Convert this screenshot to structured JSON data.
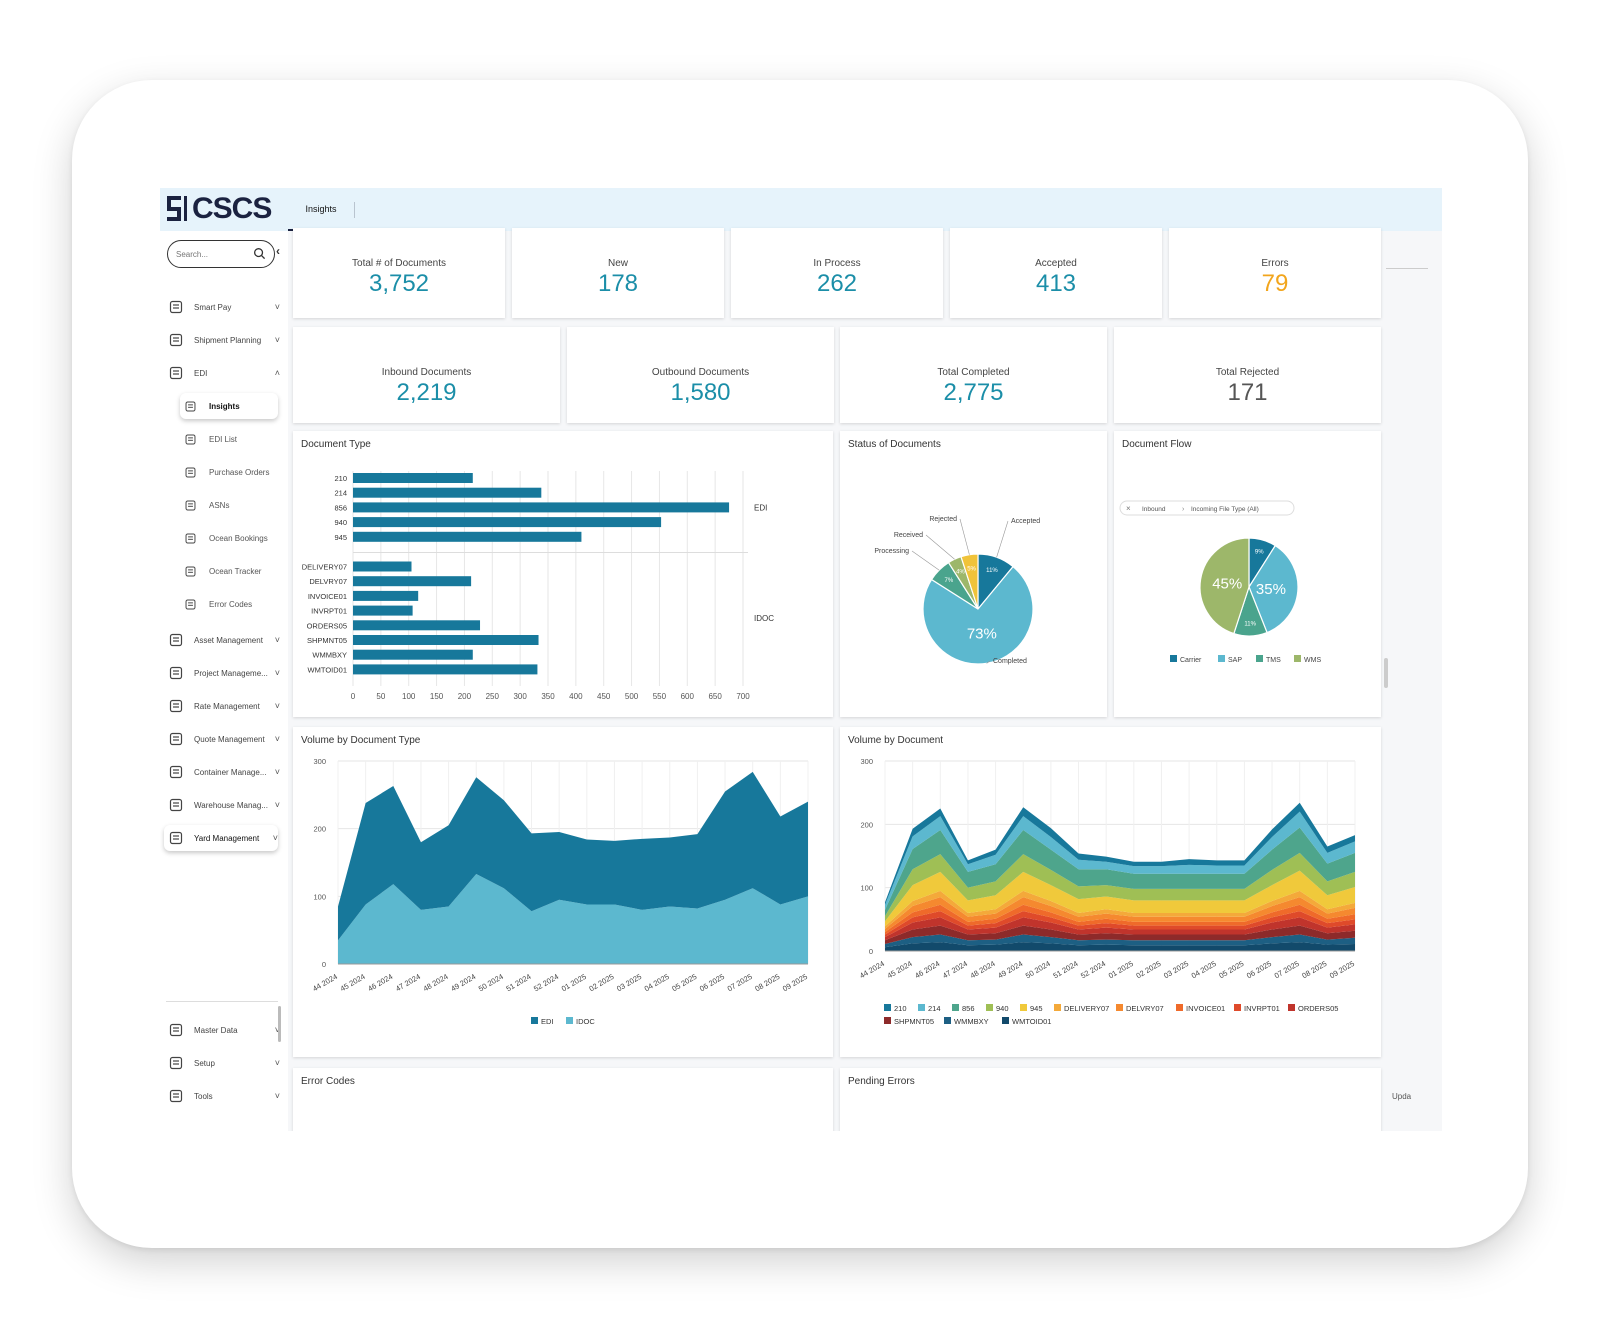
{
  "app": {
    "logo_text": "CSCS",
    "tab": "Insights"
  },
  "sidebar": {
    "search_placeholder": "Search...",
    "collapse_icon": "chevron-left-icon",
    "items": [
      {
        "label": "Smart Pay",
        "icon": "money-icon"
      },
      {
        "label": "Shipment Planning",
        "icon": "warehouse-icon"
      },
      {
        "label": "EDI",
        "icon": "exchange-icon"
      },
      {
        "label": "Asset Management",
        "icon": "assets-icon"
      },
      {
        "label": "Project Manageme...",
        "icon": "project-icon"
      },
      {
        "label": "Rate Management",
        "icon": "rate-icon"
      },
      {
        "label": "Quote Management",
        "icon": "quote-icon"
      },
      {
        "label": "Container Manage...",
        "icon": "truck-icon"
      },
      {
        "label": "Warehouse Manag...",
        "icon": "warehouse-building-icon"
      },
      {
        "label": "Yard Management",
        "icon": "yard-icon"
      }
    ],
    "edi_sub": [
      {
        "label": "Insights",
        "icon": "grid-icon"
      },
      {
        "label": "EDI List",
        "icon": "table-icon"
      },
      {
        "label": "Purchase Orders",
        "icon": "cart-icon"
      },
      {
        "label": "ASNs",
        "icon": "asn-icon"
      },
      {
        "label": "Ocean Bookings",
        "icon": "ship-icon"
      },
      {
        "label": "Ocean Tracker",
        "icon": "tracker-icon"
      },
      {
        "label": "Error Codes",
        "icon": "error-doc-icon"
      }
    ],
    "bottom": [
      {
        "label": "Master Data",
        "icon": "database-icon"
      },
      {
        "label": "Setup",
        "icon": "setup-icon"
      },
      {
        "label": "Tools",
        "icon": "tools-icon"
      }
    ]
  },
  "kpis_row1": [
    {
      "label": "Total # of Documents",
      "value": "3,752",
      "color": "#1b8ea8"
    },
    {
      "label": "New",
      "value": "178",
      "color": "#1b8ea8"
    },
    {
      "label": "In Process",
      "value": "262",
      "color": "#1b8ea8"
    },
    {
      "label": "Accepted",
      "value": "413",
      "color": "#1b8ea8"
    },
    {
      "label": "Errors",
      "value": "79",
      "color": "#f2a51c"
    }
  ],
  "kpis_row2": [
    {
      "label": "Inbound Documents",
      "value": "2,219",
      "color": "#1b8ea8"
    },
    {
      "label": "Outbound Documents",
      "value": "1,580",
      "color": "#1b8ea8"
    },
    {
      "label": "Total Completed",
      "value": "2,775",
      "color": "#1b8ea8"
    },
    {
      "label": "Total Rejected",
      "value": "171",
      "color": "#555555"
    }
  ],
  "cards": {
    "doc_type": "Document Type",
    "status": "Status of Documents",
    "flow": "Document Flow",
    "vol_type": "Volume by Document Type",
    "vol_doc": "Volume by Document",
    "error_codes": "Error Codes",
    "pending": "Pending Errors"
  },
  "flow_filter": {
    "clear_icon": "close-icon",
    "step1": "Inbound",
    "step2": "Incoming File Type (All)"
  },
  "footer": {
    "update_text": "Upda"
  },
  "chart_data": [
    {
      "type": "bar",
      "orientation": "horizontal",
      "title": "Document Type",
      "groups": [
        {
          "name": "EDI",
          "categories": [
            "210",
            "214",
            "856",
            "940",
            "945"
          ],
          "values": [
            215,
            338,
            675,
            553,
            410
          ]
        },
        {
          "name": "IDOC",
          "categories": [
            "DELIVERY07",
            "DELVRY07",
            "INVOICE01",
            "INVRPT01",
            "ORDERS05",
            "SHPMNT05",
            "WMMBXY",
            "WMTOID01"
          ],
          "values": [
            105,
            212,
            117,
            107,
            228,
            333,
            215,
            331
          ]
        }
      ],
      "xticks": [
        0,
        50,
        100,
        150,
        200,
        250,
        300,
        350,
        400,
        450,
        500,
        550,
        600,
        650,
        700
      ],
      "xlim": [
        0,
        700
      ],
      "color": "#17789b"
    },
    {
      "type": "pie",
      "title": "Status of Documents",
      "slices": [
        {
          "label": "Accepted",
          "value": 11,
          "color": "#17789b",
          "pct_label": "11%"
        },
        {
          "label": "Completed",
          "value": 73,
          "color": "#5cb8cf",
          "pct_label": "73%"
        },
        {
          "label": "Processing",
          "value": 7,
          "color": "#4aa48d",
          "pct_label": "7%"
        },
        {
          "label": "Received",
          "value": 4,
          "color": "#9db76a",
          "pct_label": "4%"
        },
        {
          "label": "Rejected",
          "value": 5,
          "color": "#f0c33a",
          "pct_label": "5%"
        }
      ]
    },
    {
      "type": "pie",
      "title": "Document Flow",
      "slices": [
        {
          "label": "Carrier",
          "value": 9,
          "color": "#17789b",
          "pct_label": "9%"
        },
        {
          "label": "SAP",
          "value": 35,
          "color": "#5cb8cf",
          "pct_label": "35%"
        },
        {
          "label": "TMS",
          "value": 11,
          "color": "#4aa48d",
          "pct_label": "11%"
        },
        {
          "label": "WMS",
          "value": 45,
          "color": "#9db76a",
          "pct_label": "45%"
        }
      ]
    },
    {
      "type": "area",
      "title": "Volume by Document Type",
      "x": [
        "44 2024",
        "45 2024",
        "46 2024",
        "47 2024",
        "48 2024",
        "49 2024",
        "50 2024",
        "51 2024",
        "52 2024",
        "01 2025",
        "02 2025",
        "03 2025",
        "04 2025",
        "05 2025",
        "06 2025",
        "07 2025",
        "08 2025",
        "09 2025"
      ],
      "stacked": true,
      "ylim": [
        0,
        300
      ],
      "yticks": [
        0,
        100,
        200,
        300
      ],
      "series": [
        {
          "name": "IDOC",
          "color": "#5cb8cf",
          "values": [
            35,
            88,
            118,
            80,
            85,
            133,
            112,
            78,
            95,
            88,
            88,
            80,
            85,
            82,
            95,
            112,
            88,
            100
          ]
        },
        {
          "name": "EDI",
          "color": "#17789b",
          "values": [
            50,
            150,
            145,
            100,
            120,
            143,
            130,
            115,
            100,
            96,
            94,
            105,
            102,
            110,
            160,
            172,
            130,
            140
          ]
        }
      ]
    },
    {
      "type": "area",
      "title": "Volume by Document",
      "x": [
        "44 2024",
        "45 2024",
        "46 2024",
        "47 2024",
        "48 2024",
        "49 2024",
        "50 2024",
        "51 2024",
        "52 2024",
        "01 2025",
        "02 2025",
        "03 2025",
        "04 2025",
        "05 2025",
        "06 2025",
        "07 2025",
        "08 2025",
        "09 2025"
      ],
      "stacked": true,
      "ylim": [
        0,
        300
      ],
      "yticks": [
        0,
        100,
        200,
        300
      ],
      "series": [
        {
          "name": "WMTOID01",
          "color": "#124a6b",
          "values": [
            6,
            12,
            14,
            9,
            10,
            14,
            12,
            9,
            10,
            9,
            9,
            9,
            9,
            9,
            12,
            14,
            10,
            11
          ]
        },
        {
          "name": "WMMBXY",
          "color": "#1d5f83",
          "values": [
            5,
            10,
            12,
            8,
            8,
            12,
            10,
            8,
            8,
            8,
            8,
            8,
            8,
            8,
            10,
            12,
            8,
            10
          ]
        },
        {
          "name": "SHPMNT05",
          "color": "#8d2a2a",
          "values": [
            6,
            12,
            14,
            9,
            10,
            14,
            12,
            9,
            10,
            9,
            9,
            9,
            9,
            9,
            12,
            14,
            10,
            11
          ]
        },
        {
          "name": "ORDERS05",
          "color": "#c0342c",
          "values": [
            5,
            11,
            13,
            8,
            9,
            13,
            11,
            8,
            9,
            8,
            8,
            8,
            8,
            8,
            11,
            13,
            9,
            10
          ]
        },
        {
          "name": "INVRPT01",
          "color": "#df4a2a",
          "values": [
            4,
            8,
            10,
            6,
            7,
            10,
            8,
            6,
            7,
            6,
            6,
            6,
            6,
            6,
            8,
            10,
            7,
            8
          ]
        },
        {
          "name": "INVOICE01",
          "color": "#ef6a2a",
          "values": [
            4,
            8,
            10,
            6,
            7,
            10,
            8,
            6,
            7,
            6,
            6,
            6,
            6,
            6,
            8,
            10,
            7,
            8
          ]
        },
        {
          "name": "DELVRY07",
          "color": "#f5892f",
          "values": [
            5,
            10,
            12,
            8,
            8,
            12,
            10,
            8,
            8,
            8,
            8,
            8,
            8,
            8,
            10,
            12,
            8,
            10
          ]
        },
        {
          "name": "DELIVERY07",
          "color": "#f4a93a",
          "values": [
            4,
            8,
            10,
            6,
            7,
            10,
            8,
            6,
            7,
            6,
            6,
            6,
            6,
            6,
            8,
            10,
            7,
            8
          ]
        },
        {
          "name": "945",
          "color": "#f0c93b",
          "values": [
            8,
            25,
            30,
            20,
            22,
            30,
            25,
            22,
            20,
            20,
            20,
            20,
            20,
            20,
            25,
            32,
            22,
            25
          ]
        },
        {
          "name": "940",
          "color": "#9fbf55",
          "values": [
            8,
            25,
            28,
            20,
            22,
            28,
            24,
            20,
            18,
            18,
            18,
            18,
            18,
            18,
            24,
            28,
            22,
            24
          ]
        },
        {
          "name": "856",
          "color": "#4ea58c",
          "values": [
            10,
            32,
            38,
            25,
            27,
            38,
            32,
            27,
            25,
            24,
            24,
            24,
            24,
            24,
            32,
            40,
            28,
            30
          ]
        },
        {
          "name": "214",
          "color": "#5cb8cf",
          "values": [
            8,
            20,
            22,
            12,
            15,
            22,
            20,
            15,
            12,
            12,
            12,
            14,
            13,
            13,
            20,
            25,
            17,
            18
          ]
        },
        {
          "name": "210",
          "color": "#17789b",
          "values": [
            4,
            12,
            12,
            6,
            8,
            14,
            14,
            10,
            8,
            7,
            7,
            9,
            8,
            8,
            12,
            14,
            10,
            10
          ]
        }
      ]
    }
  ]
}
